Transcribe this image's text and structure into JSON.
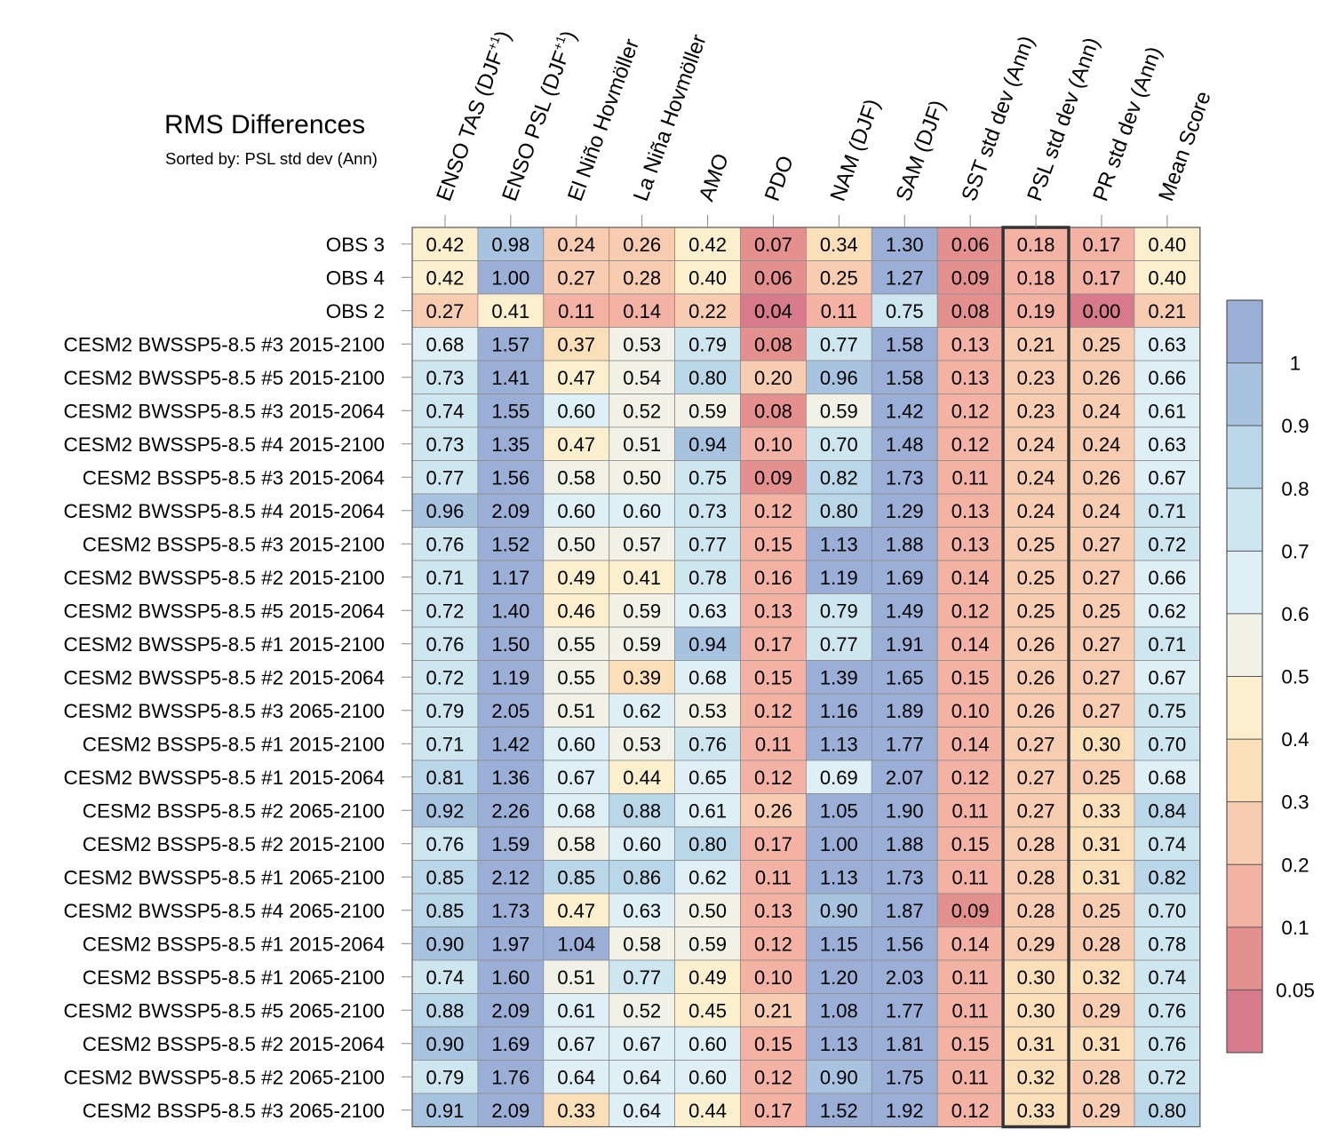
{
  "chart_data": {
    "type": "heatmap",
    "title": "RMS Differences",
    "subtitle": "Sorted by: PSL std dev (Ann)",
    "highlighted_column": "PSL std dev (Ann)",
    "columns": [
      {
        "main": "ENSO TAS (DJF",
        "sup": "+1",
        "tail": ")"
      },
      {
        "main": "ENSO PSL (DJF",
        "sup": "+1",
        "tail": ")"
      },
      {
        "main": "El Niño Hovmöller",
        "sup": "",
        "tail": ""
      },
      {
        "main": "La Niña Hovmöller",
        "sup": "",
        "tail": ""
      },
      {
        "main": "AMO",
        "sup": "",
        "tail": ""
      },
      {
        "main": "PDO",
        "sup": "",
        "tail": ""
      },
      {
        "main": "NAM (DJF)",
        "sup": "",
        "tail": ""
      },
      {
        "main": "SAM (DJF)",
        "sup": "",
        "tail": ""
      },
      {
        "main": "SST std dev (Ann)",
        "sup": "",
        "tail": ""
      },
      {
        "main": "PSL std dev (Ann)",
        "sup": "",
        "tail": ""
      },
      {
        "main": "PR std dev (Ann)",
        "sup": "",
        "tail": ""
      },
      {
        "main": "Mean Score",
        "sup": "",
        "tail": ""
      }
    ],
    "rows": [
      "OBS 3",
      "OBS 4",
      "OBS 2",
      "CESM2 BWSSP5-8.5 #3 2015-2100",
      "CESM2 BWSSP5-8.5 #5 2015-2100",
      "CESM2 BWSSP5-8.5 #3 2015-2064",
      "CESM2 BWSSP5-8.5 #4 2015-2100",
      "CESM2 BSSP5-8.5 #3 2015-2064",
      "CESM2 BWSSP5-8.5 #4 2015-2064",
      "CESM2 BSSP5-8.5 #3 2015-2100",
      "CESM2 BWSSP5-8.5 #2 2015-2100",
      "CESM2 BWSSP5-8.5 #5 2015-2064",
      "CESM2 BWSSP5-8.5 #1 2015-2100",
      "CESM2 BWSSP5-8.5 #2 2015-2064",
      "CESM2 BWSSP5-8.5 #3 2065-2100",
      "CESM2 BSSP5-8.5 #1 2015-2100",
      "CESM2 BWSSP5-8.5 #1 2015-2064",
      "CESM2 BSSP5-8.5 #2 2065-2100",
      "CESM2 BSSP5-8.5 #2 2015-2100",
      "CESM2 BWSSP5-8.5 #1 2065-2100",
      "CESM2 BWSSP5-8.5 #4 2065-2100",
      "CESM2 BSSP5-8.5 #1 2015-2064",
      "CESM2 BSSP5-8.5 #1 2065-2100",
      "CESM2 BWSSP5-8.5 #5 2065-2100",
      "CESM2 BSSP5-8.5 #2 2015-2064",
      "CESM2 BWSSP5-8.5 #2 2065-2100",
      "CESM2 BSSP5-8.5 #3 2065-2100"
    ],
    "values": [
      [
        "0.42",
        "0.98",
        "0.24",
        "0.26",
        "0.42",
        "0.07",
        "0.34",
        "1.30",
        "0.06",
        "0.18",
        "0.17",
        "0.40"
      ],
      [
        "0.42",
        "1.00",
        "0.27",
        "0.28",
        "0.40",
        "0.06",
        "0.25",
        "1.27",
        "0.09",
        "0.18",
        "0.17",
        "0.40"
      ],
      [
        "0.27",
        "0.41",
        "0.11",
        "0.14",
        "0.22",
        "0.04",
        "0.11",
        "0.75",
        "0.08",
        "0.19",
        "0.00",
        "0.21"
      ],
      [
        "0.68",
        "1.57",
        "0.37",
        "0.53",
        "0.79",
        "0.08",
        "0.77",
        "1.58",
        "0.13",
        "0.21",
        "0.25",
        "0.63"
      ],
      [
        "0.73",
        "1.41",
        "0.47",
        "0.54",
        "0.80",
        "0.20",
        "0.96",
        "1.58",
        "0.13",
        "0.23",
        "0.26",
        "0.66"
      ],
      [
        "0.74",
        "1.55",
        "0.60",
        "0.52",
        "0.59",
        "0.08",
        "0.59",
        "1.42",
        "0.12",
        "0.23",
        "0.24",
        "0.61"
      ],
      [
        "0.73",
        "1.35",
        "0.47",
        "0.51",
        "0.94",
        "0.10",
        "0.70",
        "1.48",
        "0.12",
        "0.24",
        "0.24",
        "0.63"
      ],
      [
        "0.77",
        "1.56",
        "0.58",
        "0.50",
        "0.75",
        "0.09",
        "0.82",
        "1.73",
        "0.11",
        "0.24",
        "0.26",
        "0.67"
      ],
      [
        "0.96",
        "2.09",
        "0.60",
        "0.60",
        "0.73",
        "0.12",
        "0.80",
        "1.29",
        "0.13",
        "0.24",
        "0.24",
        "0.71"
      ],
      [
        "0.76",
        "1.52",
        "0.50",
        "0.57",
        "0.77",
        "0.15",
        "1.13",
        "1.88",
        "0.13",
        "0.25",
        "0.27",
        "0.72"
      ],
      [
        "0.71",
        "1.17",
        "0.49",
        "0.41",
        "0.78",
        "0.16",
        "1.19",
        "1.69",
        "0.14",
        "0.25",
        "0.27",
        "0.66"
      ],
      [
        "0.72",
        "1.40",
        "0.46",
        "0.59",
        "0.63",
        "0.13",
        "0.79",
        "1.49",
        "0.12",
        "0.25",
        "0.25",
        "0.62"
      ],
      [
        "0.76",
        "1.50",
        "0.55",
        "0.59",
        "0.94",
        "0.17",
        "0.77",
        "1.91",
        "0.14",
        "0.26",
        "0.27",
        "0.71"
      ],
      [
        "0.72",
        "1.19",
        "0.55",
        "0.39",
        "0.68",
        "0.15",
        "1.39",
        "1.65",
        "0.15",
        "0.26",
        "0.27",
        "0.67"
      ],
      [
        "0.79",
        "2.05",
        "0.51",
        "0.62",
        "0.53",
        "0.12",
        "1.16",
        "1.89",
        "0.10",
        "0.26",
        "0.27",
        "0.75"
      ],
      [
        "0.71",
        "1.42",
        "0.60",
        "0.53",
        "0.76",
        "0.11",
        "1.13",
        "1.77",
        "0.14",
        "0.27",
        "0.30",
        "0.70"
      ],
      [
        "0.81",
        "1.36",
        "0.67",
        "0.44",
        "0.65",
        "0.12",
        "0.69",
        "2.07",
        "0.12",
        "0.27",
        "0.25",
        "0.68"
      ],
      [
        "0.92",
        "2.26",
        "0.68",
        "0.88",
        "0.61",
        "0.26",
        "1.05",
        "1.90",
        "0.11",
        "0.27",
        "0.33",
        "0.84"
      ],
      [
        "0.76",
        "1.59",
        "0.58",
        "0.60",
        "0.80",
        "0.17",
        "1.00",
        "1.88",
        "0.15",
        "0.28",
        "0.31",
        "0.74"
      ],
      [
        "0.85",
        "2.12",
        "0.85",
        "0.86",
        "0.62",
        "0.11",
        "1.13",
        "1.73",
        "0.11",
        "0.28",
        "0.31",
        "0.82"
      ],
      [
        "0.85",
        "1.73",
        "0.47",
        "0.63",
        "0.50",
        "0.13",
        "0.90",
        "1.87",
        "0.09",
        "0.28",
        "0.25",
        "0.70"
      ],
      [
        "0.90",
        "1.97",
        "1.04",
        "0.58",
        "0.59",
        "0.12",
        "1.15",
        "1.56",
        "0.14",
        "0.29",
        "0.28",
        "0.78"
      ],
      [
        "0.74",
        "1.60",
        "0.51",
        "0.77",
        "0.49",
        "0.10",
        "1.20",
        "2.03",
        "0.11",
        "0.30",
        "0.32",
        "0.74"
      ],
      [
        "0.88",
        "2.09",
        "0.61",
        "0.52",
        "0.45",
        "0.21",
        "1.08",
        "1.77",
        "0.11",
        "0.30",
        "0.29",
        "0.76"
      ],
      [
        "0.90",
        "1.69",
        "0.67",
        "0.67",
        "0.60",
        "0.15",
        "1.13",
        "1.81",
        "0.15",
        "0.31",
        "0.31",
        "0.76"
      ],
      [
        "0.79",
        "1.76",
        "0.64",
        "0.64",
        "0.60",
        "0.12",
        "0.90",
        "1.75",
        "0.11",
        "0.32",
        "0.28",
        "0.72"
      ],
      [
        "0.91",
        "2.09",
        "0.33",
        "0.64",
        "0.44",
        "0.17",
        "1.52",
        "1.92",
        "0.12",
        "0.33",
        "0.29",
        "0.80"
      ]
    ],
    "colorbar": {
      "levels": [
        "0.05",
        "0.1",
        "0.2",
        "0.3",
        "0.4",
        "0.5",
        "0.6",
        "0.7",
        "0.8",
        "0.9",
        "1"
      ],
      "colors": [
        "#d67a8c",
        "#e4908f",
        "#f3b2a3",
        "#f8ccb0",
        "#fbdfb9",
        "#fcefcd",
        "#f1f1e8",
        "#deeff5",
        "#cde6ef",
        "#b9d7e8",
        "#a7c3e0",
        "#9aaed6"
      ]
    }
  }
}
